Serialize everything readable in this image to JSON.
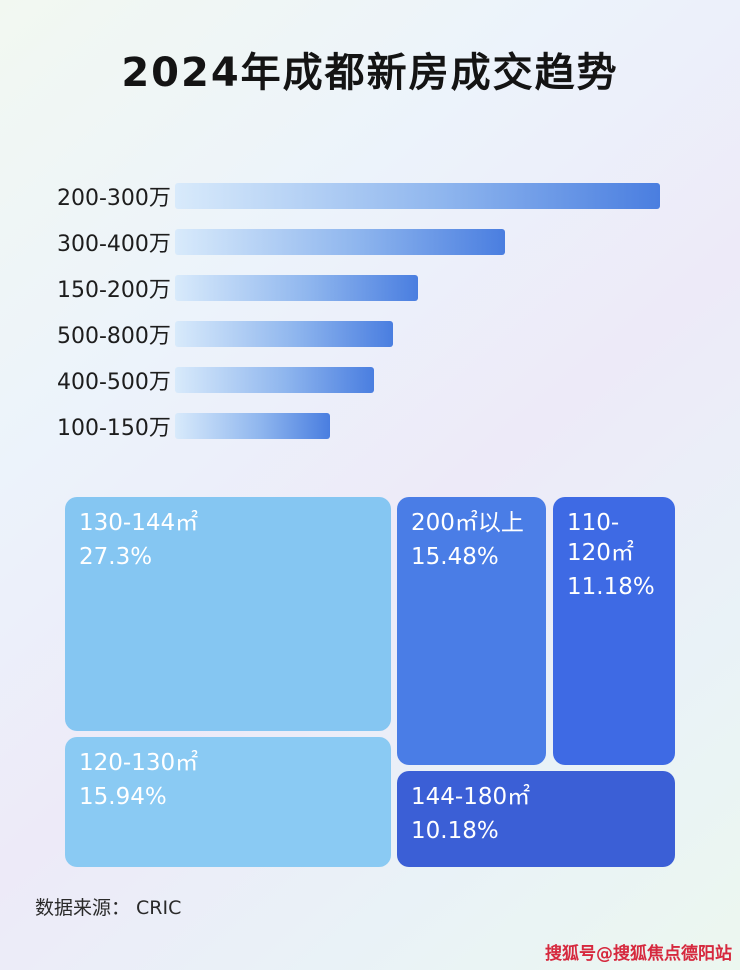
{
  "page": {
    "title": "2024年成都新房成交趋势",
    "source": "数据来源： CRIC",
    "watermark": "搜狐号@搜狐焦点德阳站"
  },
  "colors": {
    "bar_gradient_start": "#d8eafb",
    "bar_gradient_end": "#4a7ee0",
    "treemap_light_blue": "#85c6f2",
    "treemap_medium_blue": "#4a7de6",
    "treemap_blue": "#3e6ae4",
    "treemap_dark_blue": "#3b5fd6",
    "watermark_red": "#d6293e"
  },
  "chart_data": [
    {
      "type": "bar",
      "orientation": "horizontal",
      "title": "2024年成都新房成交趋势",
      "categories": [
        "200-300万",
        "300-400万",
        "150-200万",
        "500-800万",
        "400-500万",
        "100-150万"
      ],
      "values": [
        100,
        68,
        50,
        45,
        41,
        32
      ],
      "value_note": "bars carry no numeric labels in the image; values are relative bar lengths with the longest bar = 100",
      "xlabel": "",
      "ylabel": "",
      "grid": false,
      "legend": false
    },
    {
      "type": "pie",
      "subtype": "treemap",
      "items": [
        {
          "label": "130-144㎡",
          "percent": "27.3%",
          "value": 27.3
        },
        {
          "label": "200㎡以上",
          "percent": "15.48%",
          "value": 15.48
        },
        {
          "label": "110-120㎡",
          "percent": "11.18%",
          "value": 11.18
        },
        {
          "label": "120-130㎡",
          "percent": "15.94%",
          "value": 15.94
        },
        {
          "label": "144-180㎡",
          "percent": "10.18%",
          "value": 10.18
        }
      ],
      "legend": false
    }
  ]
}
